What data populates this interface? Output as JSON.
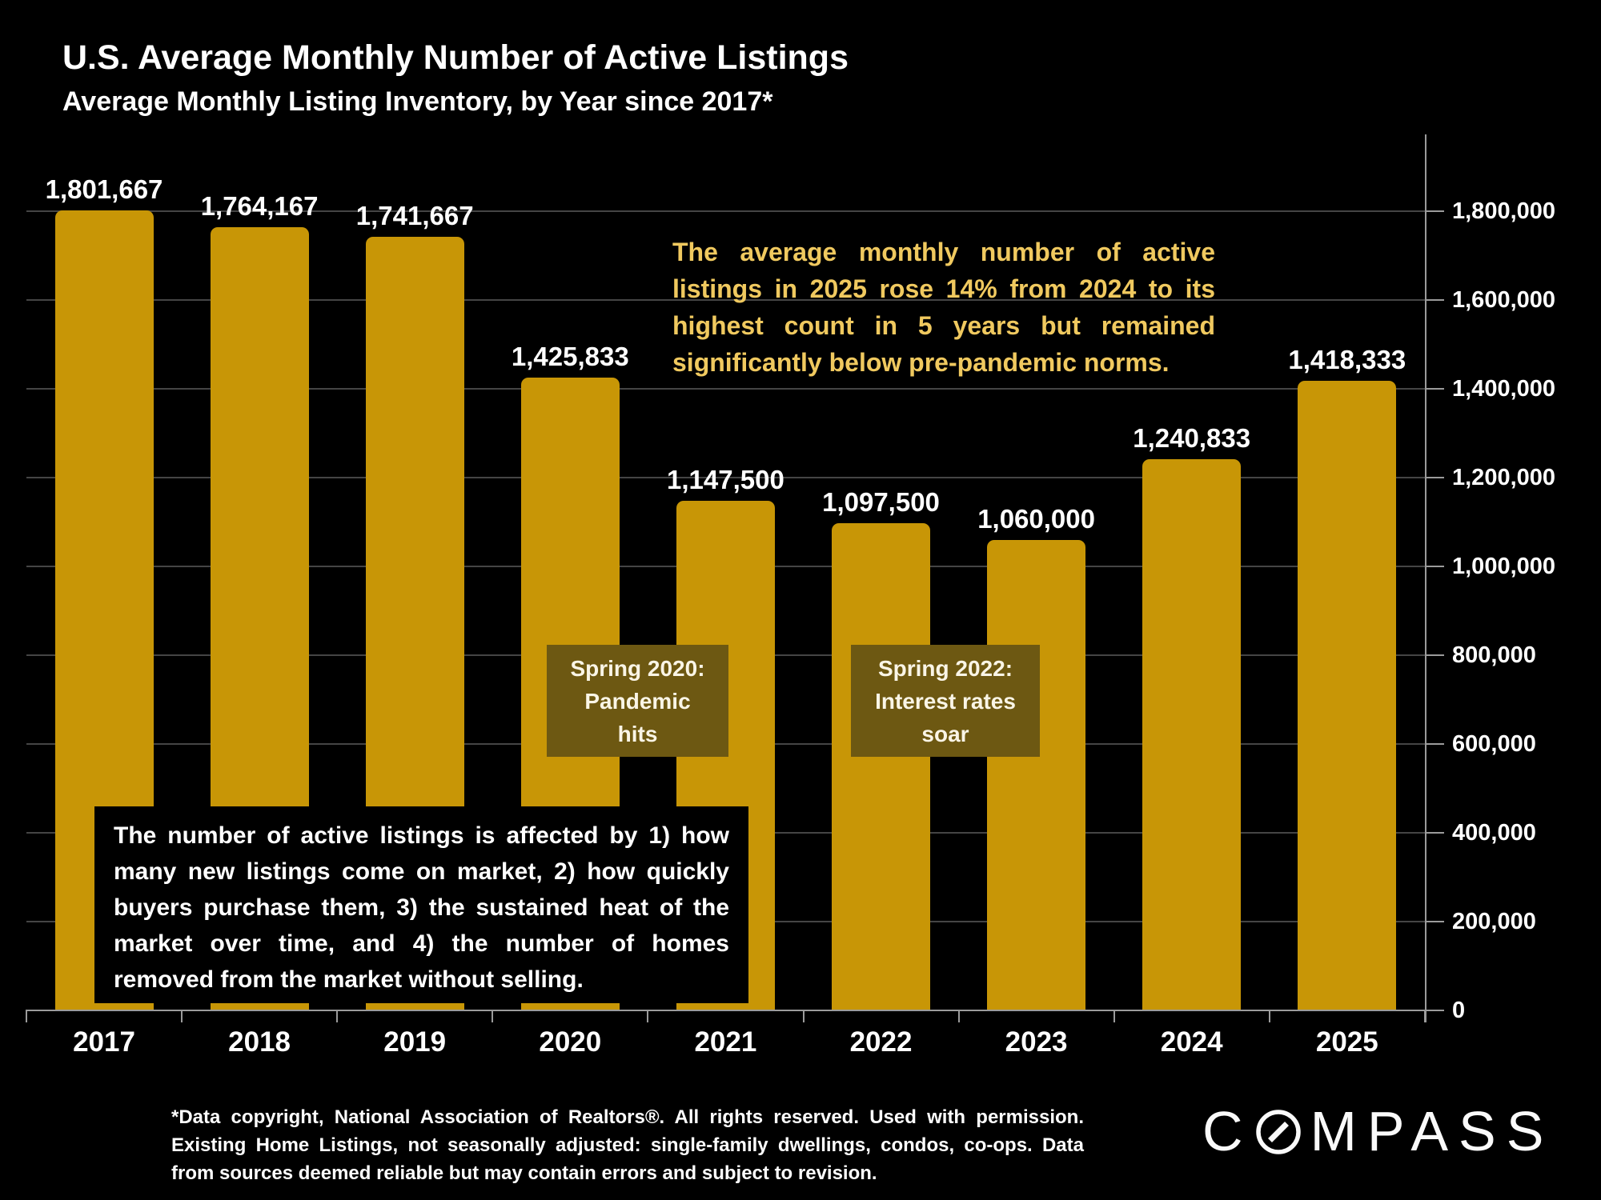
{
  "colors": {
    "background": "#000000",
    "bar": "#C89606",
    "annotation_text": "#F0C95F",
    "callout_background": "#6D5812",
    "gridline": "#454545",
    "axis": "#9B9B9B",
    "text": "#FFFFFF"
  },
  "header": {
    "title": "U.S. Average Monthly Number of Active Listings",
    "subtitle": "Average Monthly Listing Inventory, by Year since 2017*"
  },
  "annotation": {
    "text": "The average monthly number of active listings in 2025 rose 14% from 2024 to its highest count in 5 years but remained significantly below pre-pandemic norms."
  },
  "callouts": [
    {
      "lines": [
        "Spring 2020:",
        "Pandemic",
        "hits"
      ]
    },
    {
      "lines": [
        "Spring 2022:",
        "Interest rates",
        "soar"
      ]
    }
  ],
  "info_box": {
    "text": "The number of active listings is affected by 1) how many new listings come on market, 2) how quickly buyers purchase them, 3) the sustained heat of the market over time, and 4) the number of homes removed from the market without selling."
  },
  "footnote": {
    "text": "*Data copyright, National Association of Realtors®. All rights reserved. Used with permission. Existing Home Listings, not seasonally adjusted: single-family dwellings, condos, co-ops. Data from sources deemed reliable but may contain errors and subject to revision."
  },
  "logo": {
    "text": "COMPASS",
    "prefix": "C",
    "suffix": "MPASS"
  },
  "chart_data": {
    "type": "bar",
    "title": "U.S. Average Monthly Number of Active Listings",
    "subtitle": "Average Monthly Listing Inventory, by Year since 2017*",
    "categories": [
      "2017",
      "2018",
      "2019",
      "2020",
      "2021",
      "2022",
      "2023",
      "2024",
      "2025"
    ],
    "values": [
      1801667,
      1764167,
      1741667,
      1425833,
      1147500,
      1097500,
      1060000,
      1240833,
      1418333
    ],
    "value_labels": [
      "1,801,667",
      "1,764,167",
      "1,741,667",
      "1,425,833",
      "1,147,500",
      "1,097,500",
      "1,060,000",
      "1,240,833",
      "1,418,333"
    ],
    "xlabel": "",
    "ylabel": "",
    "ylim": [
      0,
      1800000
    ],
    "y_ticks": [
      0,
      200000,
      400000,
      600000,
      800000,
      1000000,
      1200000,
      1400000,
      1600000,
      1800000
    ],
    "y_tick_labels": [
      "0",
      "200,000",
      "400,000",
      "600,000",
      "800,000",
      "1,000,000",
      "1,200,000",
      "1,400,000",
      "1,600,000",
      "1,800,000"
    ],
    "y_axis_side": "right",
    "grid": true,
    "bar_color": "#C89606"
  }
}
